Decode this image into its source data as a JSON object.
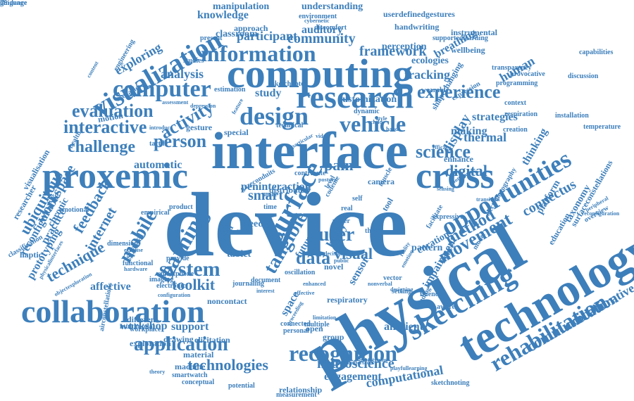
{
  "color": "#3d7fbb",
  "words": [
    {
      "text": "device",
      "angle": 0
    },
    {
      "text": "physical",
      "angle": -30
    },
    {
      "text": "interface",
      "angle": 0
    },
    {
      "text": "technology",
      "angle": -30
    },
    {
      "text": "computing",
      "angle": 0
    },
    {
      "text": "proxemic",
      "angle": 0
    },
    {
      "text": "cross",
      "angle": 0
    },
    {
      "text": "research",
      "angle": 0
    },
    {
      "text": "collaboration",
      "angle": 0
    },
    {
      "text": "sketching",
      "angle": -30
    },
    {
      "text": "surface",
      "angle": -60
    },
    {
      "text": "opportunities",
      "angle": -30
    },
    {
      "text": "design",
      "angle": 0
    },
    {
      "text": "visualization",
      "angle": -30
    },
    {
      "text": "information",
      "angle": 0
    },
    {
      "text": "computer",
      "angle": 0
    },
    {
      "text": "rehabilitation",
      "angle": -30
    },
    {
      "text": "recognition",
      "angle": 0
    },
    {
      "text": "learning",
      "angle": -60
    },
    {
      "text": "vehicle",
      "angle": 0
    },
    {
      "text": "experience",
      "angle": 0
    },
    {
      "text": "science",
      "angle": 0
    },
    {
      "text": "movement",
      "angle": -30
    },
    {
      "text": "communication",
      "angle": -30
    },
    {
      "text": "application",
      "angle": 0
    },
    {
      "text": "evaluation",
      "angle": 0
    },
    {
      "text": "interactive",
      "angle": 0
    },
    {
      "text": "activity",
      "angle": -30
    },
    {
      "text": "person",
      "angle": 0
    },
    {
      "text": "system",
      "angle": 0
    },
    {
      "text": "tangible",
      "angle": -60
    },
    {
      "text": "mobile",
      "angle": -60
    },
    {
      "text": "challenge",
      "angle": 0
    },
    {
      "text": "technologies",
      "angle": 0
    },
    {
      "text": "ubiquitous",
      "angle": -60
    },
    {
      "text": "framework",
      "angle": 0
    },
    {
      "text": "toolkit",
      "angle": 0
    },
    {
      "text": "technique",
      "angle": -30
    },
    {
      "text": "method",
      "angle": -30
    },
    {
      "text": "collaborative",
      "angle": -30
    },
    {
      "text": "digital",
      "angle": 0
    },
    {
      "text": "display",
      "angle": -60
    },
    {
      "text": "user",
      "angle": 0
    },
    {
      "text": "data",
      "angle": 0
    },
    {
      "text": "visual",
      "angle": 0
    },
    {
      "text": "pain",
      "angle": 0
    },
    {
      "text": "feedback",
      "angle": -60
    },
    {
      "text": "internet",
      "angle": -60
    },
    {
      "text": "workshop",
      "angle": 0
    },
    {
      "text": "support",
      "angle": 0
    },
    {
      "text": "neuroscience",
      "angle": 0
    },
    {
      "text": "community",
      "angle": 0
    },
    {
      "text": "participant",
      "angle": 0
    },
    {
      "text": "analysis",
      "angle": 0
    },
    {
      "text": "exploring",
      "angle": -30
    },
    {
      "text": "study",
      "angle": 0
    },
    {
      "text": "tracking",
      "angle": 0
    },
    {
      "text": "thermal",
      "angle": 0
    },
    {
      "text": "strategies",
      "angle": 0
    },
    {
      "text": "making",
      "angle": 0
    },
    {
      "text": "connectus",
      "angle": -30
    },
    {
      "text": "ambient",
      "angle": 0
    },
    {
      "text": "engagement",
      "angle": 0
    },
    {
      "text": "computational",
      "angle": -10
    },
    {
      "text": "affective",
      "angle": 0
    },
    {
      "text": "smart",
      "angle": 0
    },
    {
      "text": "workspace",
      "angle": -60
    },
    {
      "text": "reconfigurable",
      "angle": -60
    },
    {
      "text": "chronic",
      "angle": -60
    },
    {
      "text": "prototyping",
      "angle": -60
    },
    {
      "text": "practice",
      "angle": -60
    },
    {
      "text": "tablet",
      "angle": 0
    },
    {
      "text": "spatial",
      "angle": -60
    },
    {
      "text": "space",
      "angle": -60
    },
    {
      "text": "body",
      "angle": -60
    },
    {
      "text": "automatic",
      "angle": 0
    },
    {
      "text": "future",
      "angle": -60
    },
    {
      "text": "sensor",
      "angle": -60
    },
    {
      "text": "thinking",
      "angle": -60
    },
    {
      "text": "platform",
      "angle": -60
    },
    {
      "text": "taxonomy",
      "angle": -60
    },
    {
      "text": "education",
      "angle": -60
    },
    {
      "text": "impairment",
      "angle": -60
    },
    {
      "text": "curation",
      "angle": -30
    },
    {
      "text": "human",
      "angle": -30
    },
    {
      "text": "breathing",
      "angle": -30
    },
    {
      "text": "ecologies",
      "angle": 0
    },
    {
      "text": "auditory",
      "angle": 0
    },
    {
      "text": "perception",
      "angle": 0
    },
    {
      "text": "classroom",
      "angle": 0
    },
    {
      "text": "approach",
      "angle": 0
    },
    {
      "text": "knowledge",
      "angle": 0
    },
    {
      "text": "manipulation",
      "angle": 0
    },
    {
      "text": "understanding",
      "angle": 0
    },
    {
      "text": "userdefinedgestures",
      "angle": 0
    },
    {
      "text": "handwriting",
      "angle": 0
    },
    {
      "text": "instrumental",
      "angle": 0
    },
    {
      "text": "supportedlearning",
      "angle": 0
    },
    {
      "text": "wellbeing",
      "angle": 0
    },
    {
      "text": "transparency",
      "angle": 0
    },
    {
      "text": "provocative",
      "angle": 0
    },
    {
      "text": "programming",
      "angle": 0
    },
    {
      "text": "customization",
      "angle": 0
    },
    {
      "text": "sketchnotes",
      "angle": 0
    },
    {
      "text": "wearable",
      "angle": 0
    },
    {
      "text": "context",
      "angle": 0
    },
    {
      "text": "respiration",
      "angle": 0
    },
    {
      "text": "installation",
      "angle": 0
    },
    {
      "text": "temperature",
      "angle": 0
    },
    {
      "text": "expression",
      "angle": -30
    },
    {
      "text": "shapechanging",
      "angle": -60
    },
    {
      "text": "dynamic",
      "angle": 0
    },
    {
      "text": "creation",
      "angle": 0
    },
    {
      "text": "special",
      "angle": 0
    },
    {
      "text": "technical",
      "angle": 0
    },
    {
      "text": "gesture",
      "angle": 0
    },
    {
      "text": "tactile",
      "angle": 0
    },
    {
      "text": "motion",
      "angle": -10
    },
    {
      "text": "scenario",
      "angle": -30
    },
    {
      "text": "assessment",
      "angle": 0
    },
    {
      "text": "depression",
      "angle": 0
    },
    {
      "text": "estimation",
      "angle": 0
    },
    {
      "text": "studies",
      "angle": 0
    },
    {
      "text": "present",
      "angle": 0
    },
    {
      "text": "environment",
      "angle": 0
    },
    {
      "text": "discomfort",
      "angle": 0
    },
    {
      "text": "cybernetic",
      "angle": 0
    },
    {
      "text": "peninteraction",
      "angle": 0
    },
    {
      "text": "distributed",
      "angle": 0
    },
    {
      "text": "more",
      "angle": 0
    },
    {
      "text": "time",
      "angle": 0
    },
    {
      "text": "need",
      "angle": 0
    },
    {
      "text": "note",
      "angle": 0
    },
    {
      "text": "wild",
      "angle": -60
    },
    {
      "text": "level",
      "angle": -60
    },
    {
      "text": "codeme",
      "angle": -60
    },
    {
      "text": "real",
      "angle": 0
    },
    {
      "text": "self",
      "angle": 0
    },
    {
      "text": "tool",
      "angle": -60
    },
    {
      "text": "muscle",
      "angle": -60
    },
    {
      "text": "paper",
      "angle": 0
    },
    {
      "text": "thing",
      "angle": 0
    },
    {
      "text": "novel",
      "angle": 0
    },
    {
      "text": "open",
      "angle": 0
    },
    {
      "text": "group",
      "angle": 0
    },
    {
      "text": "multiple",
      "angle": 0
    },
    {
      "text": "personal",
      "angle": 0
    },
    {
      "text": "connected",
      "angle": 0
    },
    {
      "text": "noncontact",
      "angle": 0
    },
    {
      "text": "elicitation",
      "angle": 0
    },
    {
      "text": "machine",
      "angle": 0
    },
    {
      "text": "material",
      "angle": 0
    },
    {
      "text": "drawing",
      "angle": 0
    },
    {
      "text": "different",
      "angle": 0
    },
    {
      "text": "exploration",
      "angle": 0
    },
    {
      "text": "smartwatch",
      "angle": 0
    },
    {
      "text": "conceptual",
      "angle": 0
    },
    {
      "text": "potential",
      "angle": 0
    },
    {
      "text": "relationship",
      "angle": 0
    },
    {
      "text": "measurement",
      "angle": 0
    },
    {
      "text": "sketchnoting",
      "angle": 0
    },
    {
      "text": "playfullearning",
      "angle": 0
    },
    {
      "text": "prototyping",
      "angle": 0
    },
    {
      "text": "distributedinterfaces",
      "angle": 0
    },
    {
      "text": "airconstellations",
      "angle": -80
    },
    {
      "text": "multimodal",
      "angle": 0
    },
    {
      "text": "workplace",
      "angle": 0
    },
    {
      "text": "electronic",
      "angle": 0
    },
    {
      "text": "configuration",
      "angle": 0
    },
    {
      "text": "smartphone",
      "angle": 0
    },
    {
      "text": "journaling",
      "angle": 0
    },
    {
      "text": "imaging",
      "angle": 0
    },
    {
      "text": "functional",
      "angle": 0
    },
    {
      "text": "dimension",
      "angle": 0
    },
    {
      "text": "exercise",
      "angle": 0
    },
    {
      "text": "provide",
      "angle": 0
    },
    {
      "text": "oscillation",
      "angle": 0
    },
    {
      "text": "document",
      "angle": 0
    },
    {
      "text": "respiratory",
      "angle": 0
    },
    {
      "text": "decision",
      "angle": 0
    },
    {
      "text": "public",
      "angle": 0
    },
    {
      "text": "pattern",
      "angle": 0
    },
    {
      "text": "figure",
      "angle": -60
    },
    {
      "text": "vector",
      "angle": 0
    },
    {
      "text": "setting",
      "angle": 0
    },
    {
      "text": "fluency",
      "angle": 0
    },
    {
      "text": "aware",
      "angle": 0
    },
    {
      "text": "finding",
      "angle": -60
    },
    {
      "text": "model",
      "angle": -60
    },
    {
      "text": "reality",
      "angle": -60
    },
    {
      "text": "emotion",
      "angle": -60
    },
    {
      "text": "facilitate",
      "angle": -60
    },
    {
      "text": "expressive",
      "angle": 0
    },
    {
      "text": "transition",
      "angle": 0
    },
    {
      "text": "enhance",
      "angle": 0
    },
    {
      "text": "efficacy",
      "angle": 0
    },
    {
      "text": "sensing",
      "angle": 0
    },
    {
      "text": "notebook",
      "angle": -30
    },
    {
      "text": "camera",
      "angle": 0
    },
    {
      "text": "product",
      "angle": 0
    },
    {
      "text": "empirical",
      "angle": 0
    },
    {
      "text": "emotional",
      "angle": 0
    },
    {
      "text": "haptic",
      "angle": 0
    },
    {
      "text": "health",
      "angle": -60
    },
    {
      "text": "content",
      "angle": -60
    },
    {
      "text": "engineering",
      "angle": -60
    },
    {
      "text": "researcher",
      "angle": -60
    },
    {
      "text": "visualisation",
      "angle": -60
    },
    {
      "text": "classification",
      "angle": -30
    },
    {
      "text": "objectexploration",
      "angle": -30
    },
    {
      "text": "physicalinterfaces",
      "angle": -60
    },
    {
      "text": "surfaceconstellations",
      "angle": -60
    },
    {
      "text": "reconfiguration",
      "angle": 0
    },
    {
      "text": "overview",
      "angle": -30
    },
    {
      "text": "peripheral",
      "angle": -30
    },
    {
      "text": "electromyography",
      "angle": -60
    },
    {
      "text": "capabilities",
      "angle": 0
    },
    {
      "text": "discussion",
      "angle": 0
    },
    {
      "text": "introduce",
      "angle": 0
    },
    {
      "text": "feature",
      "angle": -60
    },
    {
      "text": "gazeconduits",
      "angle": -30
    },
    {
      "text": "particular",
      "angle": -30
    },
    {
      "text": "contribute",
      "angle": 0
    },
    {
      "text": "posture",
      "angle": 0
    },
    {
      "text": "video",
      "angle": 0
    },
    {
      "text": "child",
      "angle": 0
    },
    {
      "text": "hand",
      "angle": 0
    },
    {
      "text": "style",
      "angle": 0
    },
    {
      "text": "theory",
      "angle": 0
    },
    {
      "text": "hardware",
      "angle": 0
    },
    {
      "text": "enhanced",
      "angle": 0
    },
    {
      "text": "nonverbal",
      "angle": 0
    },
    {
      "text": "designing",
      "angle": 0
    },
    {
      "text": "proceeding",
      "angle": -60
    },
    {
      "text": "interest",
      "angle": 0
    },
    {
      "text": "effective",
      "angle": 0
    },
    {
      "text": "limitation",
      "angle": 0
    },
    {
      "text": "trace",
      "angle": -60
    },
    {
      "text": "language",
      "angle": 0
    },
    {
      "text": "graphic",
      "angle": -60
    },
    {
      "text": "guidance",
      "angle": 0
    }
  ]
}
